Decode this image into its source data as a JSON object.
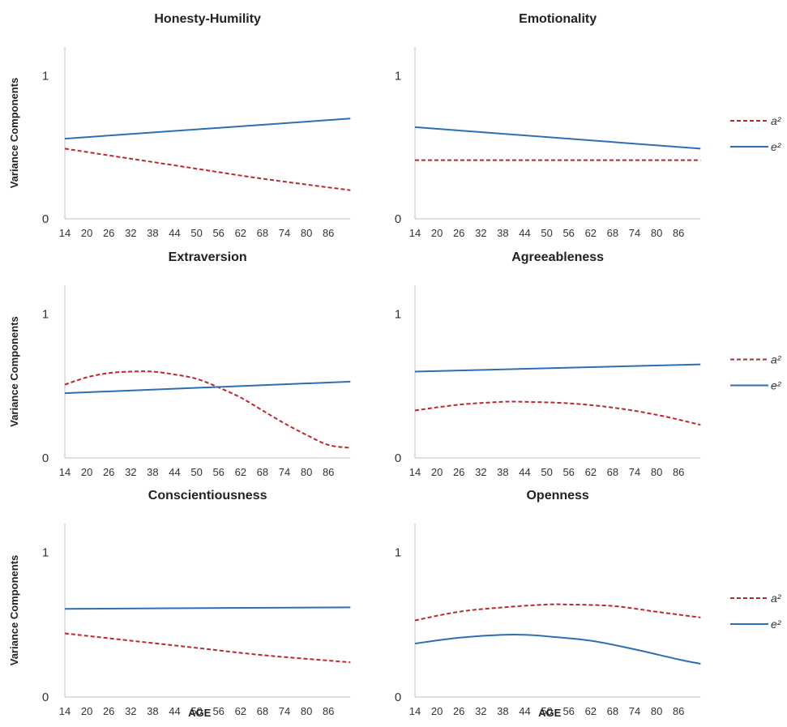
{
  "colors": {
    "a2": "#c0272d",
    "e2": "#2b70b4"
  },
  "y_axis_label": "Variance Components",
  "x_axis_label": "AGE",
  "legend": {
    "a2": "a²",
    "e2": "e²"
  },
  "chart_data": [
    {
      "type": "line",
      "title": "Honesty-Humility",
      "x": [
        14,
        20,
        26,
        32,
        38,
        44,
        50,
        56,
        62,
        68,
        74,
        80,
        86
      ],
      "xlim": [
        14,
        92
      ],
      "y_ticks": [
        "0",
        "1"
      ],
      "ylim": [
        0,
        1.2
      ],
      "series": [
        {
          "name": "a²",
          "style": "dashed",
          "x": [
            14,
            32,
            50,
            68,
            92
          ],
          "values": [
            0.49,
            0.42,
            0.35,
            0.28,
            0.2
          ]
        },
        {
          "name": "e²",
          "style": "solid",
          "x": [
            14,
            92
          ],
          "values": [
            0.56,
            0.7
          ]
        }
      ]
    },
    {
      "type": "line",
      "title": "Emotionality",
      "x": [
        14,
        20,
        26,
        32,
        38,
        44,
        50,
        56,
        62,
        68,
        74,
        80,
        86
      ],
      "xlim": [
        14,
        92
      ],
      "y_ticks": [
        "0",
        "1"
      ],
      "ylim": [
        0,
        1.2
      ],
      "series": [
        {
          "name": "a²",
          "style": "dashed",
          "x": [
            14,
            92
          ],
          "values": [
            0.41,
            0.41
          ]
        },
        {
          "name": "e²",
          "style": "solid",
          "x": [
            14,
            92
          ],
          "values": [
            0.64,
            0.49
          ]
        }
      ]
    },
    {
      "type": "line",
      "title": "Extraversion",
      "x": [
        14,
        20,
        26,
        32,
        38,
        44,
        50,
        56,
        62,
        68,
        74,
        80,
        86
      ],
      "xlim": [
        14,
        92
      ],
      "y_ticks": [
        "0",
        "1"
      ],
      "ylim": [
        0,
        1.2
      ],
      "series": [
        {
          "name": "a²",
          "style": "dashed",
          "x": [
            14,
            20,
            26,
            32,
            38,
            44,
            50,
            56,
            62,
            68,
            74,
            80,
            86,
            92
          ],
          "values": [
            0.51,
            0.56,
            0.59,
            0.6,
            0.6,
            0.58,
            0.55,
            0.49,
            0.42,
            0.33,
            0.24,
            0.16,
            0.09,
            0.07
          ]
        },
        {
          "name": "e²",
          "style": "solid",
          "x": [
            14,
            92
          ],
          "values": [
            0.45,
            0.53
          ]
        }
      ]
    },
    {
      "type": "line",
      "title": "Agreeableness",
      "x": [
        14,
        20,
        26,
        32,
        38,
        44,
        50,
        56,
        62,
        68,
        74,
        80,
        86
      ],
      "xlim": [
        14,
        92
      ],
      "y_ticks": [
        "0",
        "1"
      ],
      "ylim": [
        0,
        1.2
      ],
      "series": [
        {
          "name": "a²",
          "style": "dashed",
          "x": [
            14,
            26,
            38,
            44,
            56,
            68,
            80,
            92
          ],
          "values": [
            0.33,
            0.37,
            0.39,
            0.39,
            0.38,
            0.35,
            0.3,
            0.23
          ]
        },
        {
          "name": "e²",
          "style": "solid",
          "x": [
            14,
            92
          ],
          "values": [
            0.6,
            0.65
          ]
        }
      ]
    },
    {
      "type": "line",
      "title": "Conscientiousness",
      "x": [
        14,
        20,
        26,
        32,
        38,
        44,
        50,
        56,
        62,
        68,
        74,
        80,
        86
      ],
      "xlim": [
        14,
        92
      ],
      "y_ticks": [
        "0",
        "1"
      ],
      "ylim": [
        0,
        1.2
      ],
      "series": [
        {
          "name": "a²",
          "style": "dashed",
          "x": [
            14,
            32,
            50,
            68,
            92
          ],
          "values": [
            0.44,
            0.39,
            0.34,
            0.29,
            0.24
          ]
        },
        {
          "name": "e²",
          "style": "solid",
          "x": [
            14,
            92
          ],
          "values": [
            0.61,
            0.62
          ]
        }
      ]
    },
    {
      "type": "line",
      "title": "Openness",
      "x": [
        14,
        20,
        26,
        32,
        38,
        44,
        50,
        56,
        62,
        68,
        74,
        80,
        86
      ],
      "xlim": [
        14,
        92
      ],
      "y_ticks": [
        "0",
        "1"
      ],
      "ylim": [
        0,
        1.2
      ],
      "series": [
        {
          "name": "a²",
          "style": "dashed",
          "x": [
            14,
            26,
            38,
            50,
            56,
            68,
            80,
            92
          ],
          "values": [
            0.53,
            0.59,
            0.62,
            0.64,
            0.64,
            0.63,
            0.59,
            0.55
          ]
        },
        {
          "name": "e²",
          "style": "solid",
          "x": [
            14,
            26,
            38,
            44,
            50,
            62,
            74,
            86,
            92
          ],
          "values": [
            0.37,
            0.41,
            0.43,
            0.43,
            0.42,
            0.39,
            0.33,
            0.26,
            0.23
          ]
        }
      ]
    }
  ]
}
